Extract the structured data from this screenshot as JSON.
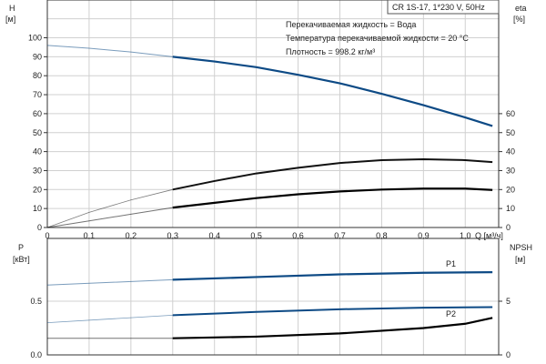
{
  "chart_data": [
    {
      "type": "line",
      "title_box": "CR 1S-17, 1*230 V, 50Hz",
      "info": [
        "Перекачиваемая жидкость = Вода",
        "Температура перекачиваемой жидкости = 20 °C",
        "Плотность = 998.2 кг/м³"
      ],
      "ylabel": "H",
      "yunit": "[м]",
      "y2label": "eta",
      "y2unit": "[%]",
      "xlabel": "Q [м³/ч]",
      "xlim": [
        0,
        1.08
      ],
      "ylim": [
        0,
        100
      ],
      "xticks": [
        "0",
        "0,1",
        "0,2",
        "0,3",
        "0,4",
        "0,5",
        "0,6",
        "0,7",
        "0,8",
        "0,9",
        "1,0"
      ],
      "yticks": [
        "0",
        "10",
        "20",
        "30",
        "40",
        "50",
        "60",
        "70",
        "80",
        "90",
        "100"
      ],
      "y2ticks": [
        "0",
        "10",
        "20",
        "30",
        "40",
        "50",
        "60"
      ],
      "grid": true,
      "series": [
        {
          "axis": "H",
          "color": "#0d4a85",
          "x": [
            0,
            0.1,
            0.2,
            0.3,
            0.4,
            0.5,
            0.6,
            0.7,
            0.8,
            0.9,
            1.0,
            1.065
          ],
          "y": [
            96,
            94.5,
            92.5,
            90,
            87.5,
            84.5,
            80.5,
            76,
            70.5,
            64.5,
            58,
            53.5
          ]
        },
        {
          "axis": "eta",
          "color": "#111111",
          "x": [
            0,
            0.1,
            0.2,
            0.3,
            0.4,
            0.5,
            0.6,
            0.7,
            0.8,
            0.9,
            1.0,
            1.065
          ],
          "y": [
            0,
            8,
            14.5,
            20,
            24.5,
            28.5,
            31.5,
            34,
            35.5,
            36,
            35.5,
            34.5
          ]
        },
        {
          "axis": "eta",
          "color": "#000000",
          "x": [
            0,
            0.1,
            0.2,
            0.3,
            0.4,
            0.5,
            0.6,
            0.7,
            0.8,
            0.9,
            1.0,
            1.065
          ],
          "y": [
            0,
            3.5,
            7,
            10.5,
            13,
            15.5,
            17.5,
            19,
            20,
            20.5,
            20.5,
            19.8
          ]
        }
      ]
    },
    {
      "type": "line",
      "ylabel": "P",
      "yunit": "[кВт]",
      "y2label": "NPSH",
      "y2unit": "[м]",
      "xlim": [
        0,
        1.08
      ],
      "ylim": [
        0,
        1.08
      ],
      "yticks": [
        "0.0",
        "0.5"
      ],
      "y2ticks": [
        "0",
        "5"
      ],
      "grid": true,
      "series": [
        {
          "name": "P1",
          "color": "#0d4a85",
          "x": [
            0,
            0.3,
            0.5,
            0.7,
            0.9,
            1.065
          ],
          "y": [
            0.65,
            0.7,
            0.725,
            0.75,
            0.765,
            0.77
          ]
        },
        {
          "name": "P2",
          "color": "#0d4a85",
          "x": [
            0,
            0.3,
            0.5,
            0.7,
            0.9,
            1.065
          ],
          "y": [
            0.3,
            0.37,
            0.4,
            0.425,
            0.44,
            0.445
          ]
        },
        {
          "axis": "NPSH",
          "color": "#000000",
          "x": [
            0,
            0.3,
            0.5,
            0.7,
            0.9,
            1.0,
            1.065
          ],
          "y": [
            1.55,
            1.55,
            1.7,
            2.0,
            2.5,
            2.9,
            3.45
          ]
        }
      ]
    }
  ]
}
